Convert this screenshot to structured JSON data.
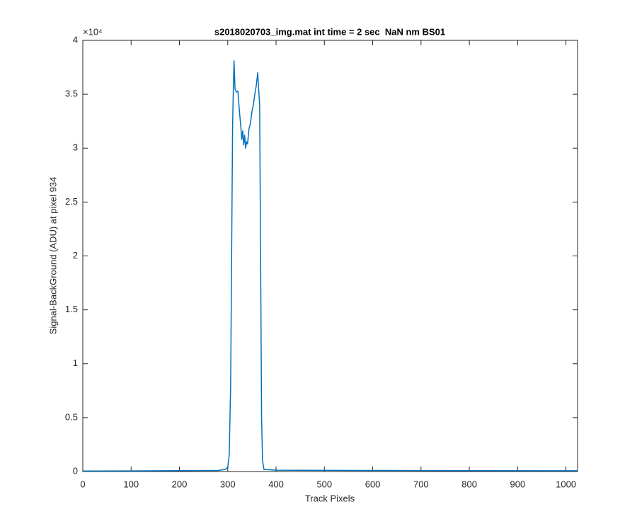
{
  "chart_data": {
    "type": "line",
    "title": "s2018020703_img.mat int time = 2 sec  NaN nm BS01",
    "x_label": "Track Pixels",
    "y_label": "Signal-BackGround (ADU) at pixel 934",
    "y_multiplier": "×10⁴",
    "color": "#0072bd",
    "x": [
      0,
      100,
      200,
      280,
      295,
      300,
      303,
      306,
      308,
      310,
      312,
      313,
      315,
      318,
      321,
      324,
      327,
      329,
      331,
      333,
      335,
      337,
      339,
      341,
      344,
      347,
      350,
      353,
      356,
      359,
      362,
      364,
      366,
      368,
      370,
      372,
      375,
      400,
      600,
      800,
      1024
    ],
    "values": [
      50,
      60,
      80,
      100,
      200,
      400,
      1500,
      8000,
      20000,
      32000,
      36500,
      38100,
      35500,
      35200,
      35300,
      33500,
      32000,
      30800,
      31600,
      30300,
      31200,
      30000,
      30600,
      30400,
      31800,
      32300,
      33400,
      34000,
      35000,
      35800,
      37000,
      35500,
      34000,
      20000,
      5000,
      1000,
      200,
      120,
      100,
      80,
      70
    ],
    "xlim": [
      0,
      1024
    ],
    "xticks": [
      0,
      100,
      200,
      300,
      400,
      500,
      600,
      700,
      800,
      900,
      1000
    ],
    "ylim": [
      0,
      40000
    ],
    "yticks": [
      0,
      {
        "value": 5000,
        "label": "0.5"
      },
      {
        "value": 10000,
        "label": "1"
      },
      {
        "value": 15000,
        "label": "1.5"
      },
      {
        "value": 20000,
        "label": "2"
      },
      {
        "value": 25000,
        "label": "2.5"
      },
      {
        "value": 30000,
        "label": "3"
      },
      {
        "value": 35000,
        "label": "3.5"
      },
      {
        "value": 40000,
        "label": "4"
      }
    ],
    "grid": false
  }
}
